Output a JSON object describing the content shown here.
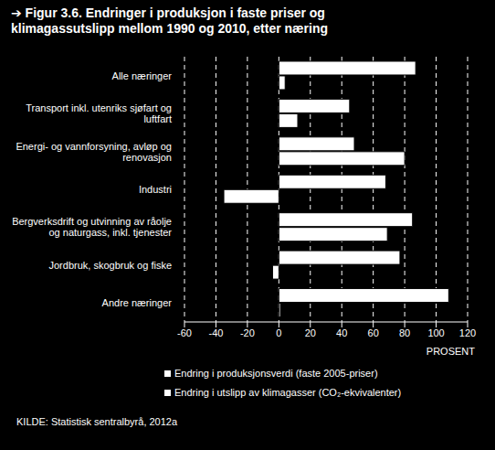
{
  "chart_data": {
    "type": "bar",
    "orientation": "horizontal",
    "title": "➔ Figur 3.6. Endringer i produksjon i faste priser og klimagassutslipp mellom 1990 og 2010, etter næring",
    "categories": [
      "Alle næringer",
      "Transport inkl. utenriks sjøfart og luftfart",
      "Energi- og vannforsyning, avløp og renovasjon",
      "Industri",
      "Bergverksdrift og utvinning av råolje og naturgass, inkl. tjenester",
      "Jordbruk, skogbruk og fiske",
      "Andre næringer"
    ],
    "series": [
      {
        "name": "Endring i produksjonsverdi (faste 2005-priser)",
        "color": "#ffffff",
        "values": [
          87,
          45,
          48,
          68,
          85,
          77,
          108
        ]
      },
      {
        "name": "Endring i utslipp av klimagasser (CO₂-ekvivalenter)",
        "color": "#ffffff",
        "values": [
          4,
          12,
          80,
          -35,
          69,
          -4,
          1
        ]
      }
    ],
    "xlabel": "PROSENT",
    "xlim": [
      -60,
      120
    ],
    "xticks": [
      -60,
      -40,
      -20,
      0,
      20,
      40,
      60,
      80,
      100,
      120
    ],
    "grid": true,
    "source": "KILDE: Statistisk sentralbyrå, 2012a"
  }
}
